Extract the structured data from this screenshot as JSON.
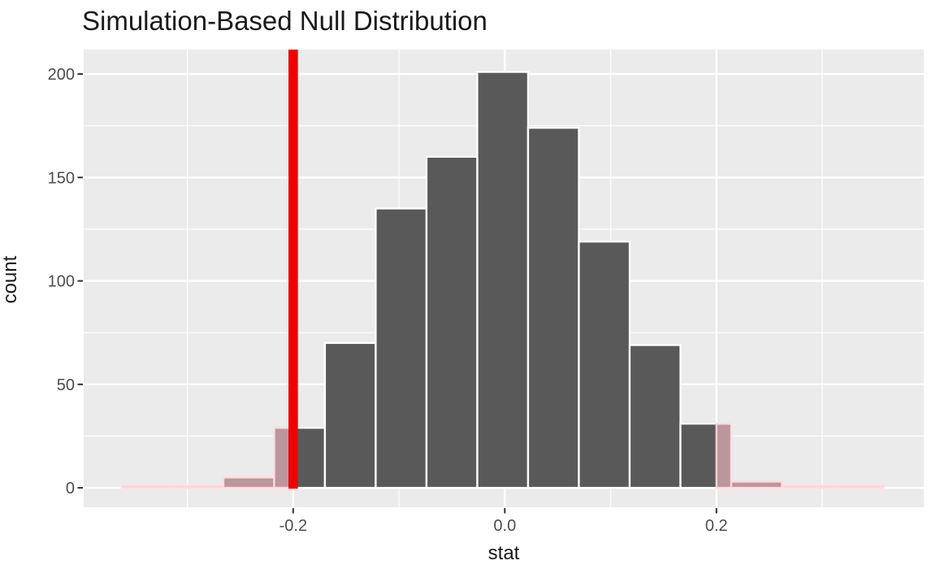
{
  "chart_data": {
    "type": "bar",
    "subtype": "simulation-null-histogram",
    "title": "Simulation-Based Null Distribution",
    "xlabel": "stat",
    "ylabel": "count",
    "bins": {
      "start": -0.362,
      "width": 0.048,
      "counts": [
        1,
        1,
        5,
        29,
        70,
        135,
        160,
        201,
        174,
        119,
        69,
        31,
        3,
        1,
        1
      ]
    },
    "observed_stat": -0.2,
    "shade_direction": "two-sided",
    "shade_regions": [
      {
        "from": -0.362,
        "to": -0.2
      },
      {
        "from": 0.2,
        "to": 0.358
      }
    ],
    "x_ticks": [
      {
        "value": -0.2,
        "label": "-0.2"
      },
      {
        "value": 0.0,
        "label": "0.0"
      },
      {
        "value": 0.2,
        "label": "0.2"
      }
    ],
    "y_ticks": [
      {
        "value": 0,
        "label": "0"
      },
      {
        "value": 50,
        "label": "50"
      },
      {
        "value": 100,
        "label": "100"
      },
      {
        "value": 150,
        "label": "150"
      },
      {
        "value": 200,
        "label": "200"
      }
    ],
    "x_minor": [
      -0.3,
      -0.1,
      0.1,
      0.3
    ],
    "y_minor": [
      25,
      75,
      125,
      175
    ],
    "xlim": [
      -0.398,
      0.396
    ],
    "ylim": [
      -9.4,
      211.8
    ],
    "grid": true,
    "legend": "none",
    "colors": {
      "panel_bg": "#EBEBEB",
      "grid": "#FFFFFF",
      "bar_fill": "#595959",
      "bar_stroke": "#FFFFFF",
      "shade_fill": "rgba(255,192,203,0.6)",
      "shade_stroke": "rgba(255,216,224,0.9)",
      "obs_line": "#F10000",
      "tick_mark": "#333333",
      "tick_text": "#4D4D4D",
      "text": "#1A1A1A"
    }
  }
}
